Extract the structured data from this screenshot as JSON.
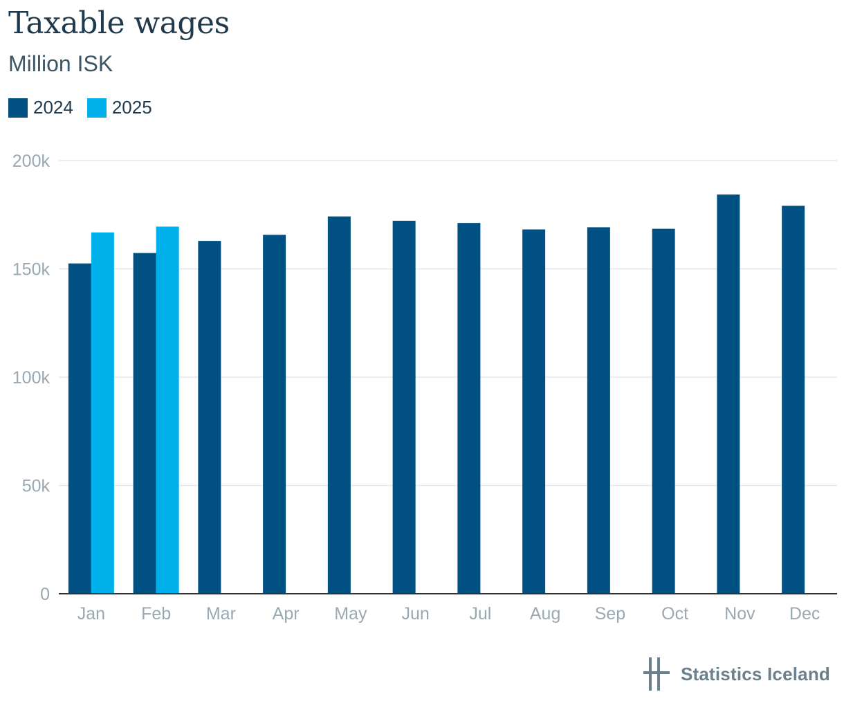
{
  "chart_data": {
    "type": "bar",
    "title": "Taxable wages",
    "subtitle": "Million ISK",
    "categories": [
      "Jan",
      "Feb",
      "Mar",
      "Apr",
      "May",
      "Jun",
      "Jul",
      "Aug",
      "Sep",
      "Oct",
      "Nov",
      "Dec"
    ],
    "series": [
      {
        "name": "2024",
        "color": "#005083",
        "values": [
          152500,
          157300,
          162900,
          165700,
          174200,
          172200,
          171200,
          168200,
          169200,
          168500,
          184300,
          179100
        ]
      },
      {
        "name": "2025",
        "color": "#00b0ea",
        "values": [
          166800,
          169500,
          null,
          null,
          null,
          null,
          null,
          null,
          null,
          null,
          null,
          null
        ]
      }
    ],
    "yticks": [
      0,
      50000,
      100000,
      150000,
      200000
    ],
    "yticklabels": [
      "0",
      "50k",
      "100k",
      "150k",
      "200k"
    ],
    "ylim": [
      0,
      200000
    ],
    "grid": true,
    "legend": "top-left"
  },
  "brand": {
    "name": "Statistics Iceland",
    "logo_icon": "statistics-iceland-logo-icon"
  }
}
